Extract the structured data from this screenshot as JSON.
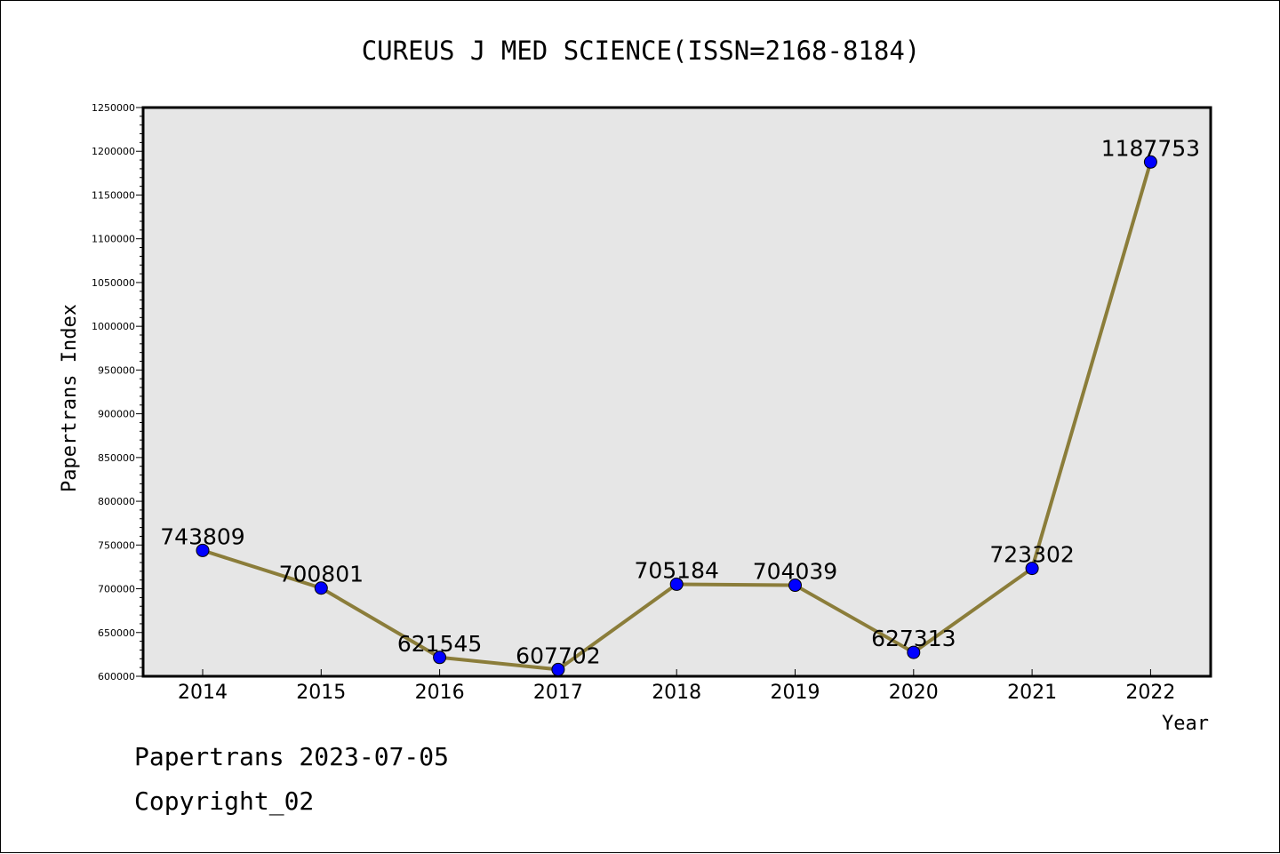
{
  "footer": {
    "line1": "Papertrans 2023-07-05",
    "line2": "Copyright_02"
  },
  "colors": {
    "plot_background": "#e6e6e6",
    "line": "#8b7d3a",
    "marker": "#0000ff"
  },
  "chart_data": {
    "type": "line",
    "title": "CUREUS J MED SCIENCE(ISSN=2168-8184)",
    "xlabel": "Year",
    "ylabel": "Papertrans Index",
    "categories": [
      "2014",
      "2015",
      "2016",
      "2017",
      "2018",
      "2019",
      "2020",
      "2021",
      "2022"
    ],
    "series": [
      {
        "values": [
          743809,
          700801,
          621545,
          607702,
          705184,
          704039,
          627313,
          723302,
          1187753
        ],
        "labels": [
          "743809",
          "700801",
          "621545",
          "607702",
          "705184",
          "704039",
          "627313",
          "723302",
          "1187753"
        ]
      }
    ],
    "ylim": [
      600000,
      1250000
    ],
    "yticks": [
      "600000",
      "650000",
      "700000",
      "750000",
      "800000",
      "850000",
      "900000",
      "950000",
      "1000000",
      "1050000",
      "1100000",
      "1150000",
      "1200000",
      "1250000"
    ],
    "grid": false,
    "legend": "none"
  }
}
